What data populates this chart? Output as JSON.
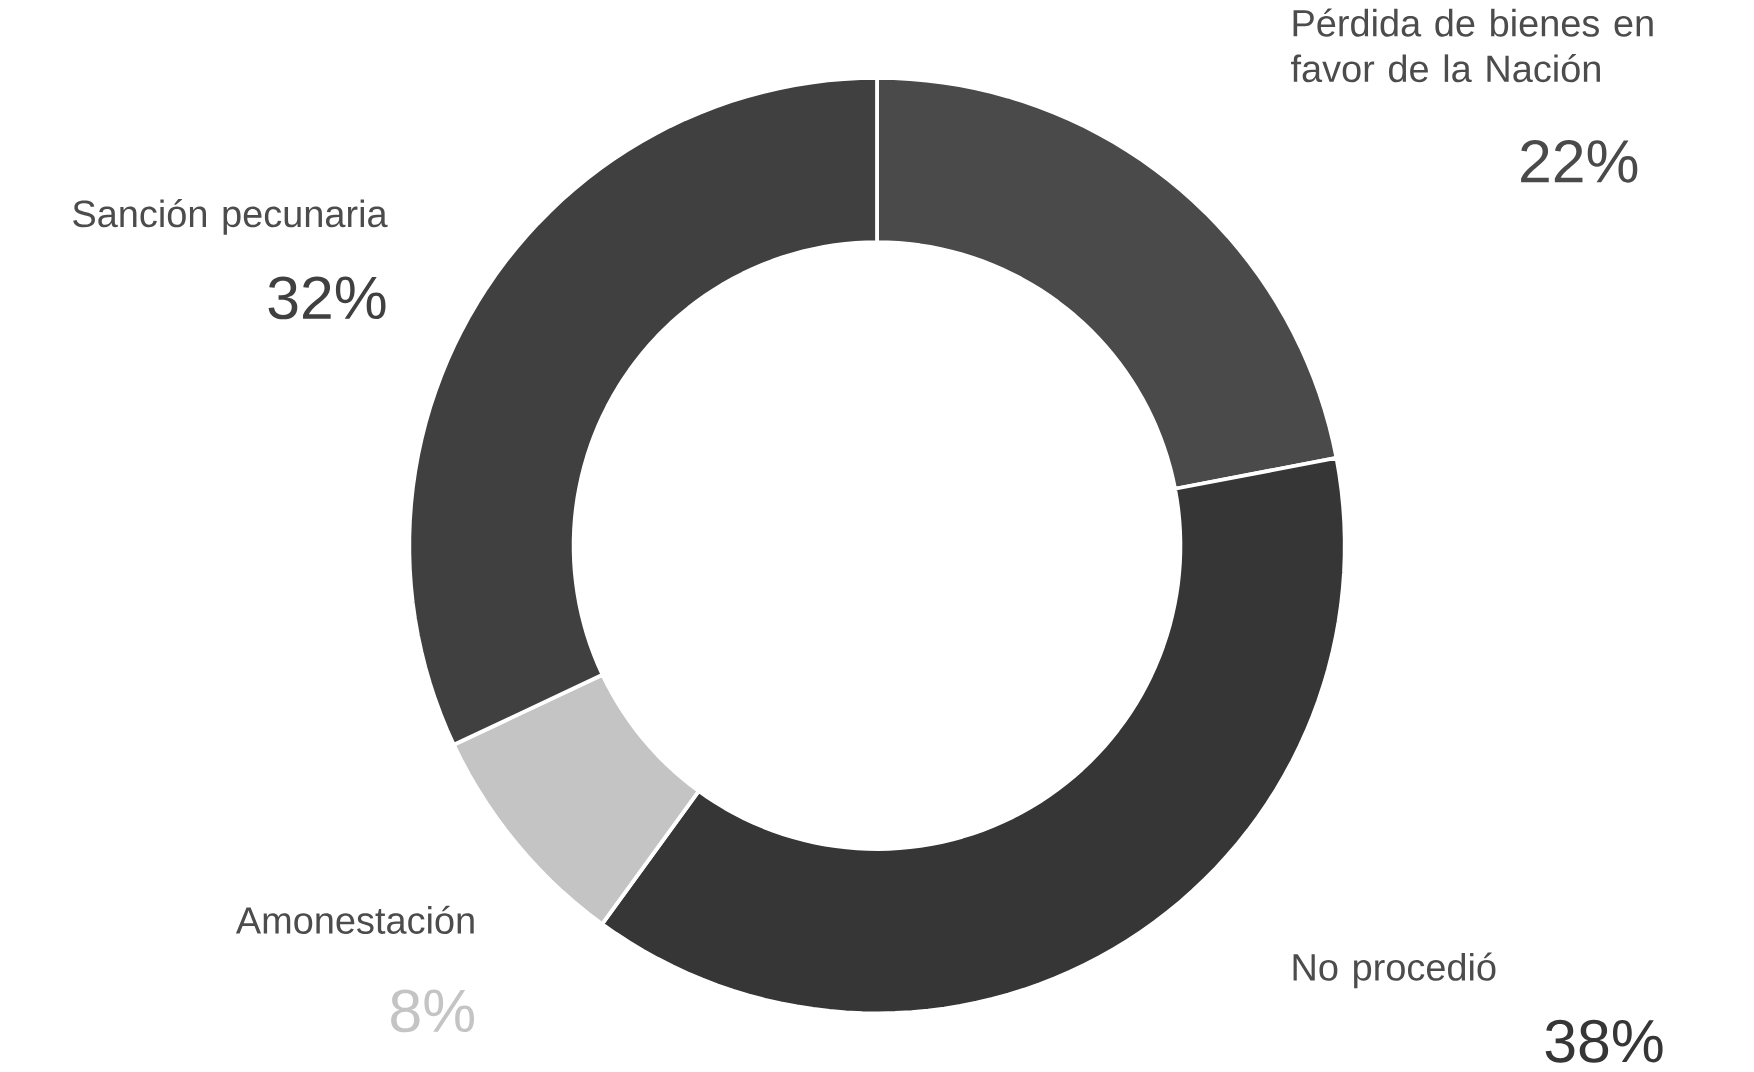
{
  "chart_data": {
    "type": "donut",
    "categories": [
      "Pérdida de bienes en favor de la Nación",
      "No procedió",
      "Amonestación",
      "Sanción pecunaria"
    ],
    "values": [
      22,
      38,
      8,
      32
    ],
    "value_labels": [
      "22%",
      "38%",
      "8%",
      "32%"
    ],
    "colors": [
      "#4a4a4a",
      "#363636",
      "#c4c4c4",
      "#404040"
    ]
  }
}
